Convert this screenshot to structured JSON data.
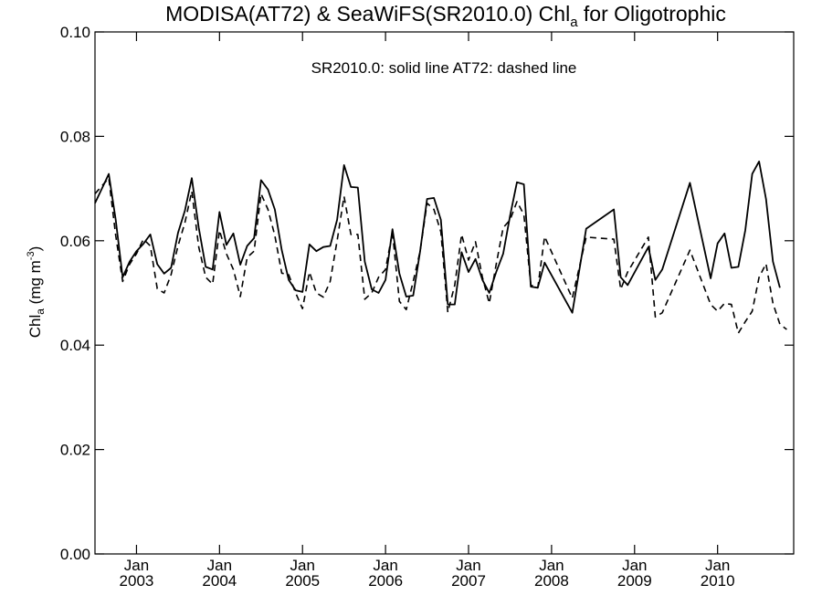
{
  "chart_data": {
    "type": "line",
    "title": {
      "main": "MODISA(AT72) & SeaWiFS(SR2010.0)  Chl",
      "sub": "a",
      "tail": " for Oligotrophic"
    },
    "annotation": "SR2010.0: solid line   AT72: dashed line",
    "ylabel": {
      "main": "Chl",
      "sub": "a",
      "unit": " (mg m",
      "sup": "-3",
      "close": ")"
    },
    "ylim": [
      0.0,
      0.1
    ],
    "yticks": [
      0.0,
      0.02,
      0.04,
      0.06,
      0.08,
      0.1
    ],
    "ytick_labels": [
      "0.00",
      "0.02",
      "0.04",
      "0.06",
      "0.08",
      "0.10"
    ],
    "xlim": [
      "2002-07-01",
      "2010-12-01"
    ],
    "xticks": [
      {
        "date": "2003-01-01",
        "month": "Jan",
        "year": "2003"
      },
      {
        "date": "2004-01-01",
        "month": "Jan",
        "year": "2004"
      },
      {
        "date": "2005-01-01",
        "month": "Jan",
        "year": "2005"
      },
      {
        "date": "2006-01-01",
        "month": "Jan",
        "year": "2006"
      },
      {
        "date": "2007-01-01",
        "month": "Jan",
        "year": "2007"
      },
      {
        "date": "2008-01-01",
        "month": "Jan",
        "year": "2008"
      },
      {
        "date": "2009-01-01",
        "month": "Jan",
        "year": "2009"
      },
      {
        "date": "2010-01-01",
        "month": "Jan",
        "year": "2010"
      }
    ],
    "series": [
      {
        "name": "SR2010.0",
        "style": "solid",
        "color": "#000000",
        "points": [
          [
            "2002-07-01",
            0.0672
          ],
          [
            "2002-08-01",
            0.07
          ],
          [
            "2002-09-01",
            0.0728
          ],
          [
            "2002-10-01",
            0.064
          ],
          [
            "2002-11-01",
            0.053
          ],
          [
            "2002-12-01",
            0.056
          ],
          [
            "2003-01-01",
            0.058
          ],
          [
            "2003-02-01",
            0.0594
          ],
          [
            "2003-03-01",
            0.0612
          ],
          [
            "2003-04-01",
            0.0555
          ],
          [
            "2003-05-01",
            0.0537
          ],
          [
            "2003-06-01",
            0.0548
          ],
          [
            "2003-07-01",
            0.0615
          ],
          [
            "2003-08-01",
            0.0658
          ],
          [
            "2003-09-01",
            0.072
          ],
          [
            "2003-10-01",
            0.0625
          ],
          [
            "2003-11-01",
            0.055
          ],
          [
            "2003-12-01",
            0.0545
          ],
          [
            "2004-01-01",
            0.0655
          ],
          [
            "2004-02-01",
            0.0592
          ],
          [
            "2004-03-01",
            0.0614
          ],
          [
            "2004-04-01",
            0.0554
          ],
          [
            "2004-05-01",
            0.059
          ],
          [
            "2004-06-01",
            0.0605
          ],
          [
            "2004-07-01",
            0.0716
          ],
          [
            "2004-08-01",
            0.0698
          ],
          [
            "2004-09-01",
            0.066
          ],
          [
            "2004-10-01",
            0.0582
          ],
          [
            "2004-11-01",
            0.0525
          ],
          [
            "2004-12-01",
            0.0505
          ],
          [
            "2005-01-01",
            0.0502
          ],
          [
            "2005-02-01",
            0.0593
          ],
          [
            "2005-03-01",
            0.058
          ],
          [
            "2005-04-01",
            0.0588
          ],
          [
            "2005-05-01",
            0.059
          ],
          [
            "2005-06-01",
            0.064
          ],
          [
            "2005-07-01",
            0.0745
          ],
          [
            "2005-08-01",
            0.0703
          ],
          [
            "2005-09-01",
            0.0702
          ],
          [
            "2005-10-01",
            0.056
          ],
          [
            "2005-11-01",
            0.0507
          ],
          [
            "2005-12-01",
            0.05
          ],
          [
            "2006-01-01",
            0.0525
          ],
          [
            "2006-02-01",
            0.0622
          ],
          [
            "2006-03-01",
            0.0537
          ],
          [
            "2006-04-01",
            0.0493
          ],
          [
            "2006-05-01",
            0.0495
          ],
          [
            "2006-06-01",
            0.058
          ],
          [
            "2006-07-01",
            0.068
          ],
          [
            "2006-08-01",
            0.0682
          ],
          [
            "2006-09-01",
            0.064
          ],
          [
            "2006-10-01",
            0.0478
          ],
          [
            "2006-11-01",
            0.0478
          ],
          [
            "2006-12-01",
            0.0578
          ],
          [
            "2007-01-01",
            0.054
          ],
          [
            "2007-02-01",
            0.0565
          ],
          [
            "2007-03-01",
            0.0525
          ],
          [
            "2007-04-01",
            0.05
          ],
          [
            "2007-05-01",
            0.054
          ],
          [
            "2007-06-01",
            0.0575
          ],
          [
            "2007-07-01",
            0.0648
          ],
          [
            "2007-08-01",
            0.0712
          ],
          [
            "2007-09-01",
            0.0708
          ],
          [
            "2007-10-01",
            0.0512
          ],
          [
            "2007-11-01",
            0.051
          ],
          [
            "2007-12-01",
            0.0558
          ],
          [
            "2008-04-01",
            0.0462
          ],
          [
            "2008-06-01",
            0.0623
          ],
          [
            "2008-10-01",
            0.066
          ],
          [
            "2008-11-01",
            0.053
          ],
          [
            "2008-12-01",
            0.0515
          ],
          [
            "2009-03-01",
            0.0588
          ],
          [
            "2009-04-01",
            0.0525
          ],
          [
            "2009-05-01",
            0.0545
          ],
          [
            "2009-09-01",
            0.0711
          ],
          [
            "2009-12-01",
            0.0528
          ],
          [
            "2010-01-01",
            0.0595
          ],
          [
            "2010-02-01",
            0.0614
          ],
          [
            "2010-03-01",
            0.0548
          ],
          [
            "2010-04-01",
            0.055
          ],
          [
            "2010-05-01",
            0.062
          ],
          [
            "2010-06-01",
            0.0728
          ],
          [
            "2010-07-01",
            0.0752
          ],
          [
            "2010-08-01",
            0.068
          ],
          [
            "2010-09-01",
            0.056
          ],
          [
            "2010-10-01",
            0.051
          ]
        ]
      },
      {
        "name": "AT72",
        "style": "dashed",
        "color": "#000000",
        "points": [
          [
            "2002-07-01",
            0.069
          ],
          [
            "2002-08-01",
            0.0705
          ],
          [
            "2002-09-01",
            0.072
          ],
          [
            "2002-10-01",
            0.061
          ],
          [
            "2002-11-01",
            0.0522
          ],
          [
            "2002-12-01",
            0.0555
          ],
          [
            "2003-01-01",
            0.0575
          ],
          [
            "2003-02-01",
            0.0603
          ],
          [
            "2003-03-01",
            0.059
          ],
          [
            "2003-04-01",
            0.0508
          ],
          [
            "2003-05-01",
            0.05
          ],
          [
            "2003-06-01",
            0.0535
          ],
          [
            "2003-07-01",
            0.059
          ],
          [
            "2003-08-01",
            0.0635
          ],
          [
            "2003-09-01",
            0.0695
          ],
          [
            "2003-10-01",
            0.0588
          ],
          [
            "2003-11-01",
            0.053
          ],
          [
            "2003-12-01",
            0.0517
          ],
          [
            "2004-01-01",
            0.062
          ],
          [
            "2004-02-01",
            0.0575
          ],
          [
            "2004-03-01",
            0.0545
          ],
          [
            "2004-04-01",
            0.0493
          ],
          [
            "2004-05-01",
            0.0568
          ],
          [
            "2004-06-01",
            0.058
          ],
          [
            "2004-07-01",
            0.069
          ],
          [
            "2004-08-01",
            0.066
          ],
          [
            "2004-09-01",
            0.061
          ],
          [
            "2004-10-01",
            0.0538
          ],
          [
            "2004-11-01",
            0.0535
          ],
          [
            "2004-12-01",
            0.05
          ],
          [
            "2005-01-01",
            0.047
          ],
          [
            "2005-02-01",
            0.054
          ],
          [
            "2005-03-01",
            0.05
          ],
          [
            "2005-04-01",
            0.0492
          ],
          [
            "2005-05-01",
            0.0522
          ],
          [
            "2005-06-01",
            0.06
          ],
          [
            "2005-07-01",
            0.0685
          ],
          [
            "2005-08-01",
            0.0612
          ],
          [
            "2005-09-01",
            0.0612
          ],
          [
            "2005-10-01",
            0.0488
          ],
          [
            "2005-11-01",
            0.05
          ],
          [
            "2005-12-01",
            0.053
          ],
          [
            "2006-01-01",
            0.0545
          ],
          [
            "2006-02-01",
            0.0617
          ],
          [
            "2006-03-01",
            0.0484
          ],
          [
            "2006-04-01",
            0.0468
          ],
          [
            "2006-05-01",
            0.0522
          ],
          [
            "2006-06-01",
            0.058
          ],
          [
            "2006-07-01",
            0.0672
          ],
          [
            "2006-08-01",
            0.066
          ],
          [
            "2006-09-01",
            0.0617
          ],
          [
            "2006-10-01",
            0.0463
          ],
          [
            "2006-11-01",
            0.0515
          ],
          [
            "2006-12-01",
            0.0612
          ],
          [
            "2007-01-01",
            0.0563
          ],
          [
            "2007-02-01",
            0.0598
          ],
          [
            "2007-03-01",
            0.053
          ],
          [
            "2007-04-01",
            0.048
          ],
          [
            "2007-05-01",
            0.0555
          ],
          [
            "2007-06-01",
            0.0625
          ],
          [
            "2007-07-01",
            0.064
          ],
          [
            "2007-08-01",
            0.0675
          ],
          [
            "2007-09-01",
            0.065
          ],
          [
            "2007-10-01",
            0.0515
          ],
          [
            "2007-11-01",
            0.051
          ],
          [
            "2007-12-01",
            0.0608
          ],
          [
            "2008-04-01",
            0.049
          ],
          [
            "2008-06-01",
            0.0607
          ],
          [
            "2008-10-01",
            0.0603
          ],
          [
            "2008-11-01",
            0.0507
          ],
          [
            "2008-12-01",
            0.054
          ],
          [
            "2009-03-01",
            0.0607
          ],
          [
            "2009-04-01",
            0.0454
          ],
          [
            "2009-05-01",
            0.0462
          ],
          [
            "2009-09-01",
            0.0582
          ],
          [
            "2009-12-01",
            0.0478
          ],
          [
            "2010-01-01",
            0.0465
          ],
          [
            "2010-02-01",
            0.048
          ],
          [
            "2010-03-01",
            0.0478
          ],
          [
            "2010-04-01",
            0.0423
          ],
          [
            "2010-05-01",
            0.0445
          ],
          [
            "2010-06-01",
            0.0465
          ],
          [
            "2010-07-01",
            0.053
          ],
          [
            "2010-08-01",
            0.0556
          ],
          [
            "2010-09-01",
            0.048
          ],
          [
            "2010-10-01",
            0.044
          ],
          [
            "2010-11-01",
            0.043
          ]
        ]
      }
    ]
  }
}
